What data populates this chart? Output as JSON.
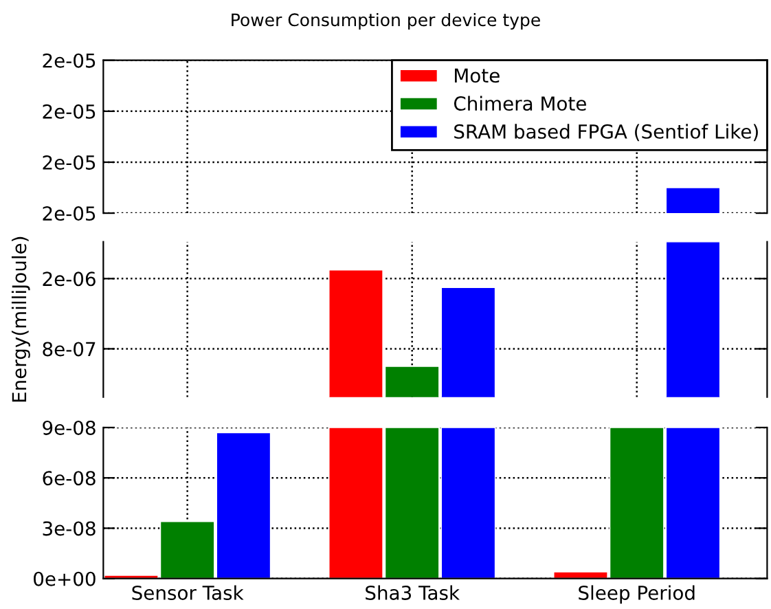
{
  "chart_data": [
    {
      "type": "bar",
      "title": "Power Consumption per device type",
      "series": [
        {
          "name": "Mote",
          "color": "#ff0000",
          "values": [
            null,
            null,
            null
          ]
        },
        {
          "name": "Chimera Mote",
          "color": "#008000",
          "values": [
            null,
            null,
            null
          ]
        },
        {
          "name": "SRAM based FPGA (Sentiof Like)",
          "color": "#0000ff",
          "values": [
            null,
            null,
            1.97e-05
          ]
        }
      ],
      "ylim": [
        1.96e-05,
        2.02e-05
      ],
      "yticks": [
        {
          "value": 1.96e-05,
          "label": "2e-05"
        },
        {
          "value": 1.98e-05,
          "label": "2e-05"
        },
        {
          "value": 2e-05,
          "label": "2e-05"
        },
        {
          "value": 2.02e-05,
          "label": "2e-05"
        }
      ],
      "grid": true,
      "legend": "top right",
      "tick_labels": "y"
    },
    {
      "type": "bar",
      "ylabel": "Energy(milliJoule)",
      "series": [
        {
          "color": "#ff0000",
          "values": [
            null,
            1.7e-06,
            null
          ]
        },
        {
          "color": "#008000",
          "values": [
            null,
            6e-07,
            null
          ]
        },
        {
          "color": "#0000ff",
          "values": [
            null,
            1.5e-06,
            2.02e-06
          ]
        }
      ],
      "ylim": [
        2.5e-07,
        2.02e-06
      ],
      "yticks": [
        {
          "value": 8e-07,
          "label": "8e-07"
        },
        {
          "value": 1.6e-06,
          "label": "2e-06"
        }
      ],
      "grid": true,
      "tick_labels": "y"
    },
    {
      "type": "bar",
      "categories": [
        "Sensor Task",
        "Sha3 Task",
        "Sleep Period"
      ],
      "series": [
        {
          "color": "#ff0000",
          "values": [
            2e-09,
            9e-08,
            4e-09
          ]
        },
        {
          "color": "#008000",
          "values": [
            3.4e-08,
            9e-08,
            9e-08
          ]
        },
        {
          "color": "#0000ff",
          "values": [
            8.7e-08,
            9e-08,
            9e-08
          ]
        }
      ],
      "ylim": [
        0,
        9e-08
      ],
      "yticks": [
        {
          "value": 0,
          "label": "0e+00"
        },
        {
          "value": 3e-08,
          "label": "3e-08"
        },
        {
          "value": 6e-08,
          "label": "6e-08"
        },
        {
          "value": 9e-08,
          "label": "9e-08"
        }
      ],
      "grid": true
    }
  ]
}
